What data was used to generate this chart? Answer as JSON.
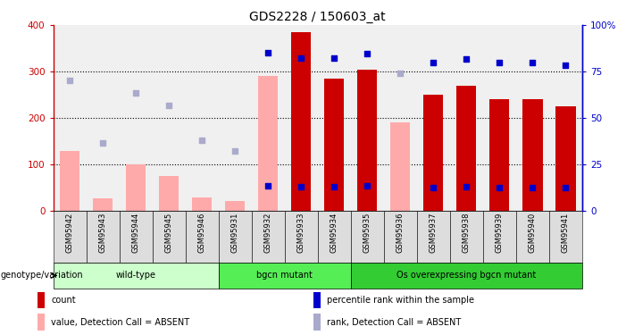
{
  "title": "GDS2228 / 150603_at",
  "samples": [
    "GSM95942",
    "GSM95943",
    "GSM95944",
    "GSM95945",
    "GSM95946",
    "GSM95931",
    "GSM95932",
    "GSM95933",
    "GSM95934",
    "GSM95935",
    "GSM95936",
    "GSM95937",
    "GSM95938",
    "GSM95939",
    "GSM95940",
    "GSM95941"
  ],
  "count_values": [
    null,
    null,
    null,
    null,
    null,
    null,
    null,
    385,
    285,
    305,
    null,
    250,
    270,
    240,
    240,
    225
  ],
  "percentile_values": [
    null,
    null,
    null,
    null,
    null,
    null,
    340,
    330,
    330,
    338,
    null,
    320,
    328,
    320,
    320,
    314
  ],
  "value_absent": [
    130,
    28,
    100,
    75,
    30,
    22,
    290,
    null,
    null,
    null,
    190,
    null,
    null,
    null,
    null,
    null
  ],
  "rank_absent": [
    282,
    147,
    255,
    228,
    153,
    130,
    null,
    null,
    null,
    null,
    297,
    null,
    null,
    null,
    null,
    null
  ],
  "groups": [
    {
      "label": "wild-type",
      "start": 0,
      "end": 5,
      "color": "#ccffcc"
    },
    {
      "label": "bgcn mutant",
      "start": 5,
      "end": 9,
      "color": "#55ee55"
    },
    {
      "label": "Os overexpressing bgcn mutant",
      "start": 9,
      "end": 16,
      "color": "#33cc33"
    }
  ],
  "left_axis_color": "#cc0000",
  "right_axis_color": "#0000cc",
  "left_ylim": [
    0,
    400
  ],
  "right_ylim": [
    0,
    100
  ],
  "left_yticks": [
    0,
    100,
    200,
    300,
    400
  ],
  "right_yticks": [
    0,
    25,
    50,
    75,
    100
  ],
  "right_yticklabels": [
    "0",
    "25",
    "50",
    "75",
    "100%"
  ],
  "bar_color_count": "#cc0000",
  "bar_color_absent": "#ffaaaa",
  "dot_color_percentile": "#0000cc",
  "dot_color_rank_absent": "#aaaacc",
  "gridline_values": [
    100,
    200,
    300
  ],
  "legend_items": [
    {
      "color": "#cc0000",
      "label": "count"
    },
    {
      "color": "#0000cc",
      "label": "percentile rank within the sample"
    },
    {
      "color": "#ffaaaa",
      "label": "value, Detection Call = ABSENT"
    },
    {
      "color": "#aaaacc",
      "label": "rank, Detection Call = ABSENT"
    }
  ],
  "genotype_label": "genotype/variation",
  "plot_bg": "#f0f0f0"
}
